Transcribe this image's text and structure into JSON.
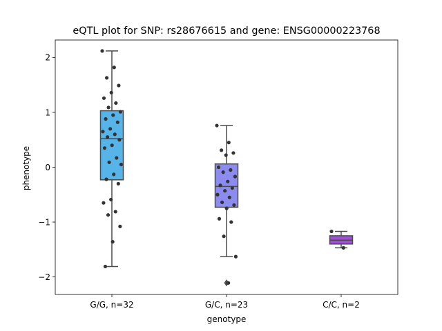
{
  "chart_data": {
    "type": "box",
    "title": "eQTL plot for SNP: rs28676615 and gene: ENSG00000223768",
    "xlabel": "genotype",
    "ylabel": "phenotype",
    "ylim": [
      -2.32,
      2.32
    ],
    "yticks": [
      -2,
      -1,
      0,
      1,
      2
    ],
    "ytick_labels": [
      "−2",
      "−1",
      "0",
      "1",
      "2"
    ],
    "grid": false,
    "categories": [
      "G/G, n=32",
      "G/C, n=23",
      "C/C, n=2"
    ],
    "boxes": [
      {
        "name": "G/G, n=32",
        "color": "#56b4e9",
        "q1": -0.23,
        "median": 0.52,
        "q3": 1.03,
        "whisker_low": -1.81,
        "whisker_high": 2.12,
        "outliers": [],
        "points": [
          2.12,
          1.82,
          1.63,
          1.49,
          1.36,
          1.26,
          1.17,
          1.09,
          1.01,
          0.95,
          0.88,
          0.82,
          0.7,
          0.65,
          0.6,
          0.55,
          0.5,
          0.4,
          0.35,
          0.17,
          0.09,
          0.05,
          -0.13,
          -0.22,
          -0.3,
          -0.59,
          -0.65,
          -0.81,
          -0.87,
          -1.08,
          -1.36,
          -1.81
        ]
      },
      {
        "name": "G/C, n=23",
        "color": "#8c8cf0",
        "q1": -0.73,
        "median": -0.35,
        "q3": 0.06,
        "whisker_low": -1.63,
        "whisker_high": 0.76,
        "outliers": [
          -2.11
        ],
        "points": [
          0.76,
          0.45,
          0.31,
          0.26,
          0.22,
          0.0,
          -0.05,
          -0.09,
          -0.17,
          -0.26,
          -0.33,
          -0.38,
          -0.43,
          -0.5,
          -0.55,
          -0.64,
          -0.69,
          -0.75,
          -0.94,
          -1.0,
          -1.26,
          -1.63,
          -2.11
        ]
      },
      {
        "name": "C/C, n=2",
        "color": "#a24fd8",
        "q1": -1.4,
        "median": -1.33,
        "q3": -1.25,
        "whisker_low": -1.47,
        "whisker_high": -1.17,
        "outliers": [],
        "points": [
          -1.17,
          -1.47
        ]
      }
    ]
  }
}
